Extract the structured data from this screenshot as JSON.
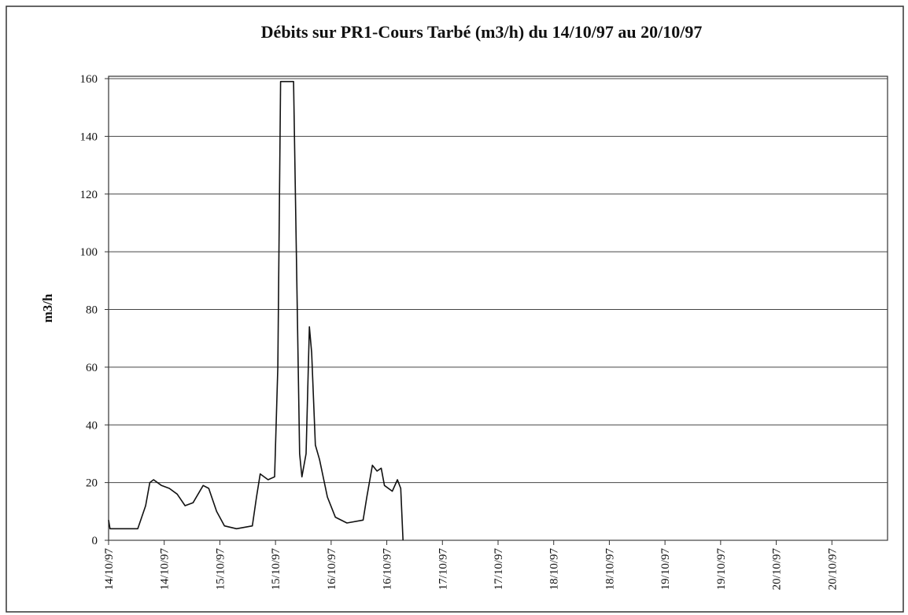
{
  "chart_data": {
    "type": "line",
    "title": "Débits sur  PR1-Cours Tarbé (m3/h)  du 14/10/97 au 20/10/97",
    "y_label": "m3/h",
    "x": [
      0,
      0.3,
      6.3,
      8,
      8.9,
      9.7,
      11.4,
      13.1,
      14.8,
      16.5,
      18.2,
      20.4,
      21.6,
      23.3,
      25,
      27.6,
      31,
      31.9,
      32.7,
      34.4,
      35.8,
      36.5,
      37.1,
      39.9,
      41.2,
      41.7,
      42.6,
      43.3,
      43.8,
      44.6,
      45.5,
      47.2,
      48.9,
      51.4,
      54.9,
      55.7,
      56.9,
      57.9,
      58.8,
      59.5,
      61.2,
      62.3,
      63,
      63.5
    ],
    "values": [
      7,
      4,
      4,
      12,
      20,
      21,
      19,
      18,
      16,
      12,
      13,
      19,
      18,
      10,
      5,
      4,
      5,
      15,
      23,
      21,
      22,
      60,
      159,
      159,
      30,
      22,
      30,
      74,
      65,
      33,
      28,
      15,
      8,
      6,
      7,
      15,
      26,
      24,
      25,
      19,
      17,
      21,
      18,
      0
    ],
    "color": "#111111",
    "xlim": [
      0,
      168
    ],
    "xticks": [
      {
        "value": 0,
        "label": "14/10/97"
      },
      {
        "value": 12,
        "label": "14/10/97"
      },
      {
        "value": 24,
        "label": "15/10/97"
      },
      {
        "value": 36,
        "label": "15/10/97"
      },
      {
        "value": 48,
        "label": "16/10/97"
      },
      {
        "value": 60,
        "label": "16/10/97"
      },
      {
        "value": 72,
        "label": "17/10/97"
      },
      {
        "value": 84,
        "label": "17/10/97"
      },
      {
        "value": 96,
        "label": "18/10/97"
      },
      {
        "value": 108,
        "label": "18/10/97"
      },
      {
        "value": 120,
        "label": "19/10/97"
      },
      {
        "value": 132,
        "label": "19/10/97"
      },
      {
        "value": 144,
        "label": "20/10/97"
      },
      {
        "value": 156,
        "label": "20/10/97"
      }
    ],
    "ylim": [
      0,
      160
    ],
    "yticks": [
      0,
      20,
      40,
      60,
      80,
      100,
      120,
      140,
      160
    ],
    "grid": true
  }
}
